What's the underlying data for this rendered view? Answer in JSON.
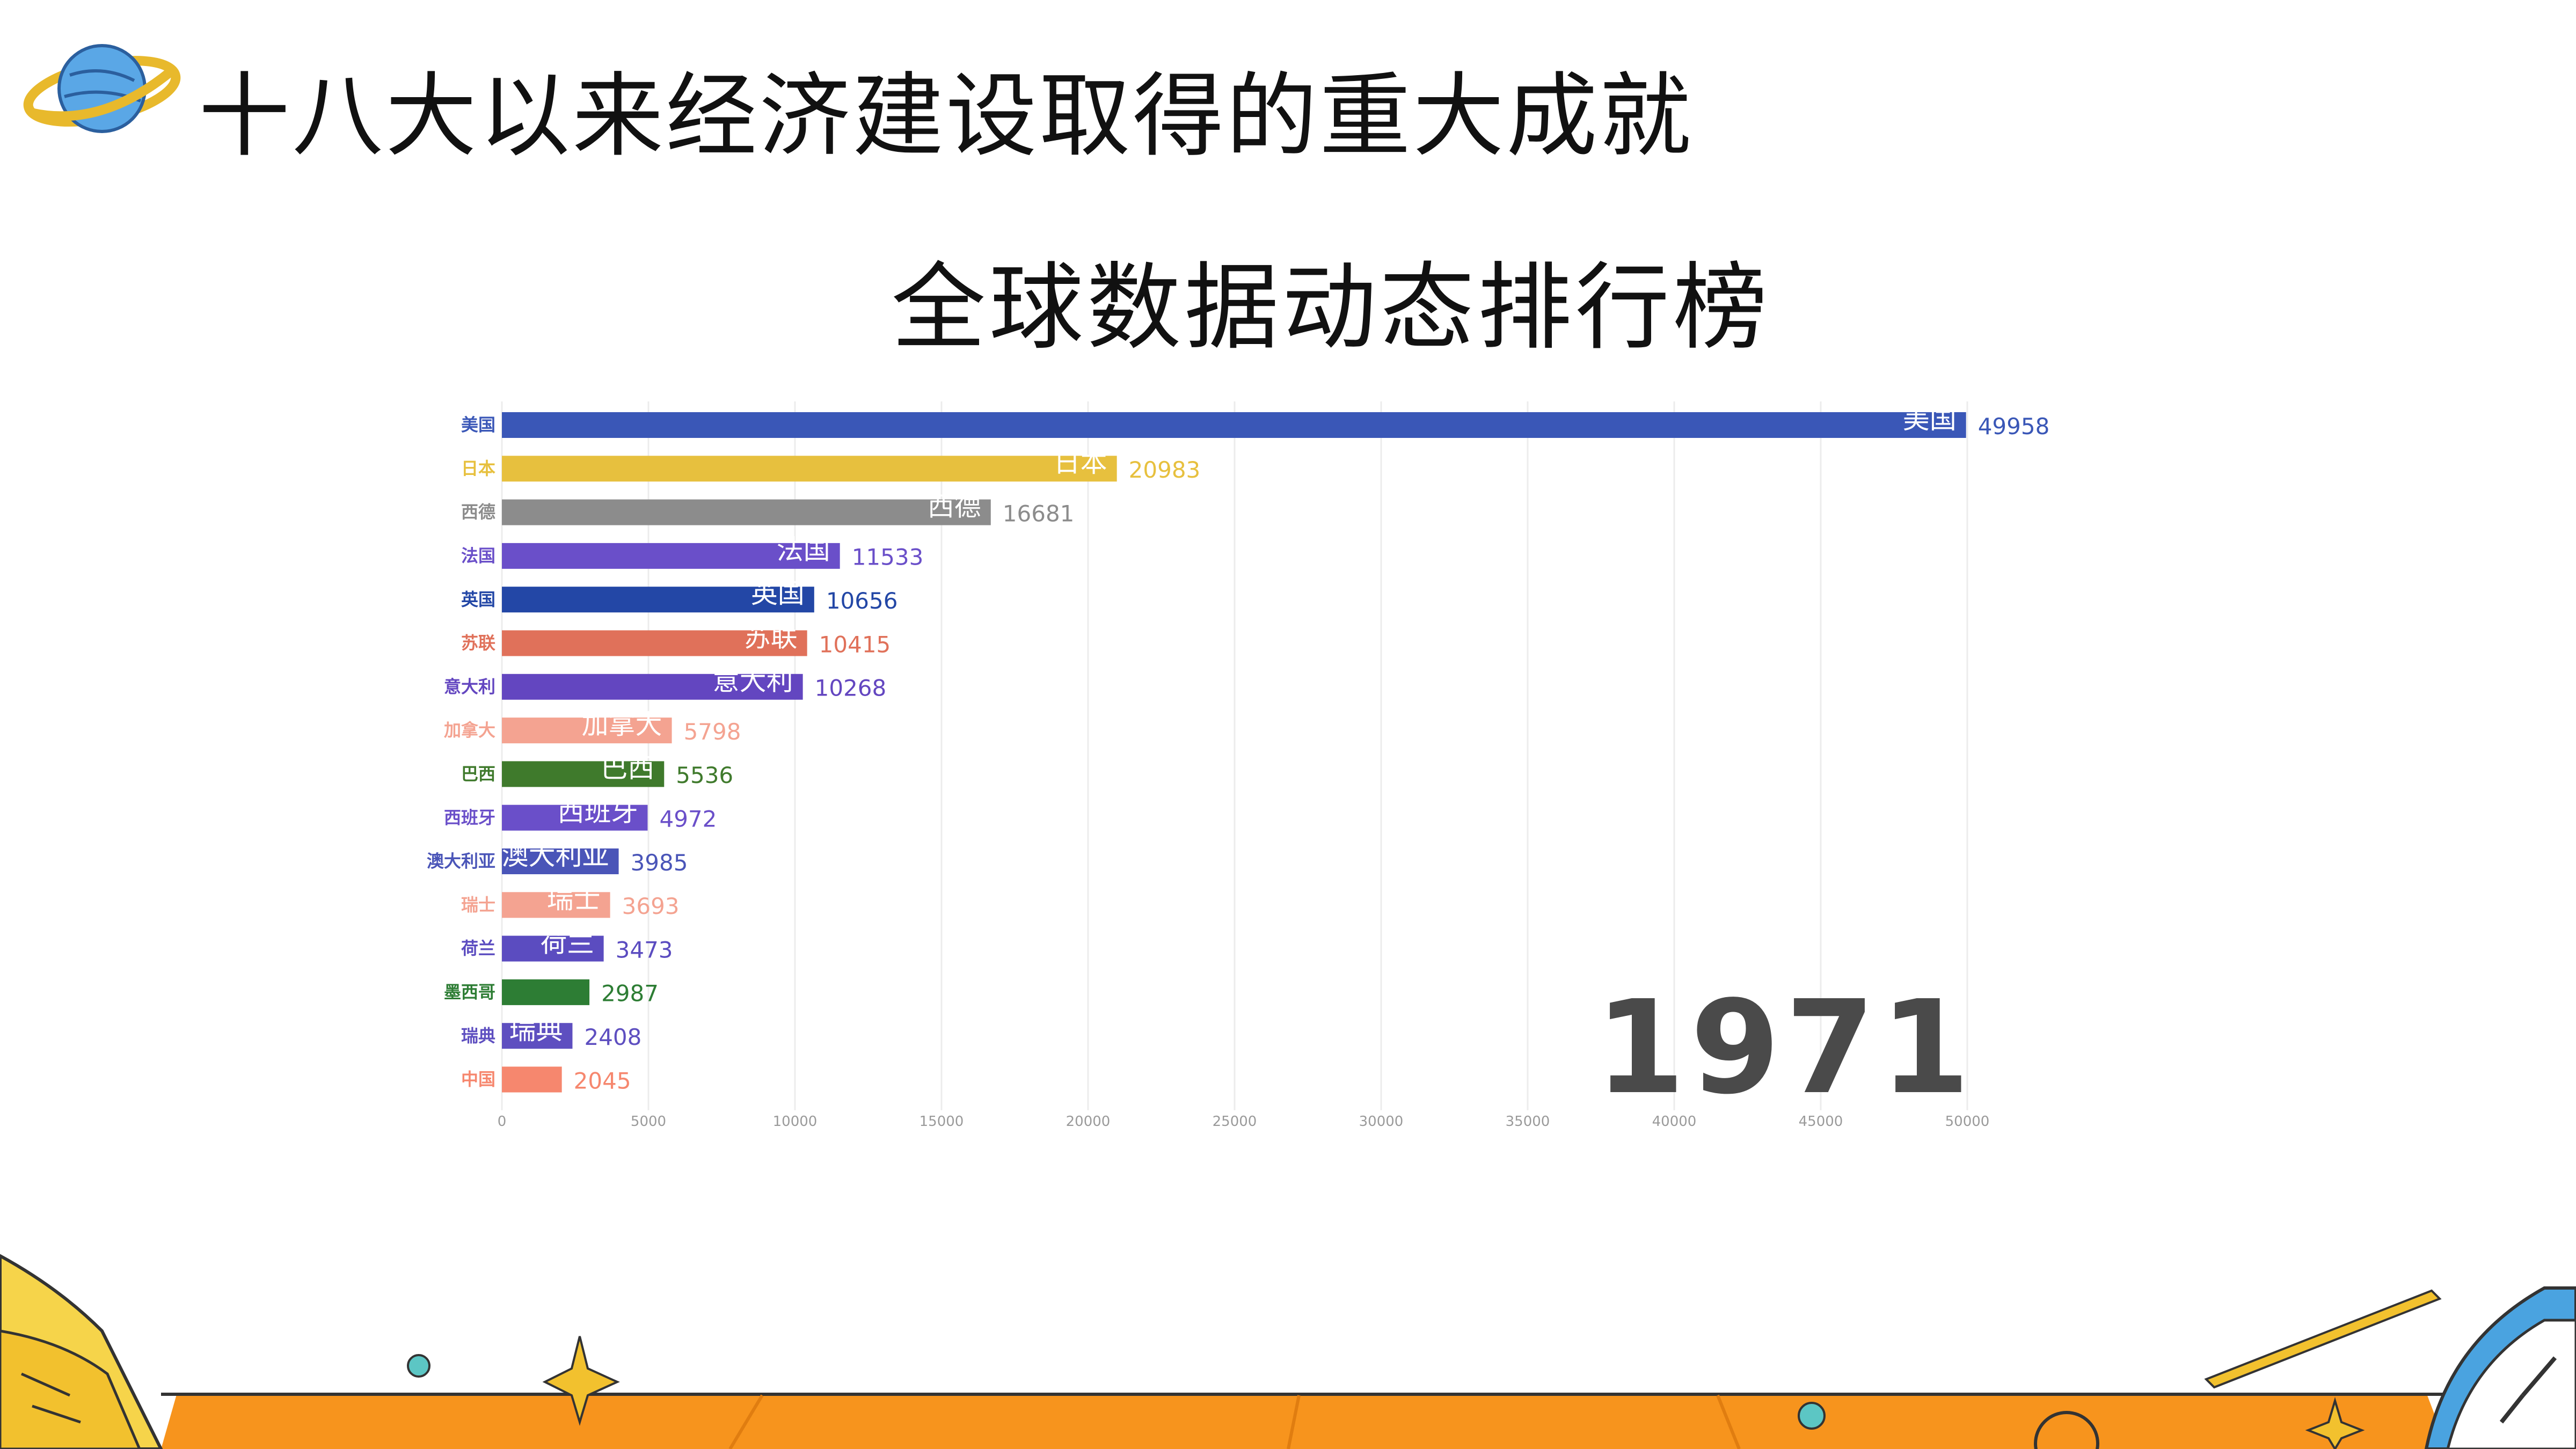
{
  "header": {
    "title": "十八大以来经济建设取得的重大成就"
  },
  "chart_data": {
    "type": "bar",
    "orientation": "horizontal",
    "title": "全球数据动态排行榜",
    "year_label": "1971",
    "categories": [
      "美国",
      "日本",
      "西德",
      "法国",
      "英国",
      "苏联",
      "意大利",
      "加拿大",
      "巴西",
      "西班牙",
      "澳大利亚",
      "瑞士",
      "荷兰",
      "墨西哥",
      "瑞典",
      "中国"
    ],
    "values": [
      49958,
      20983,
      16681,
      11533,
      10656,
      10415,
      10268,
      5798,
      5536,
      4972,
      3985,
      3693,
      3473,
      2987,
      2408,
      2045
    ],
    "value_labels": [
      "49958",
      "20983",
      "16681",
      "11533",
      "10656",
      "10415",
      "10268",
      "5798",
      "5536",
      "4972",
      "3985",
      "3693",
      "3473",
      "2987",
      "2408",
      "2045"
    ],
    "colors": [
      "#3a57b7",
      "#e7c03e",
      "#8c8c8c",
      "#6a4fc9",
      "#2347a6",
      "#e0715a",
      "#6346c0",
      "#f4a391",
      "#3f7a2c",
      "#6a4fc9",
      "#4a55b8",
      "#f4a391",
      "#5b4cc0",
      "#2d7d34",
      "#5e4fc0",
      "#f6876e"
    ],
    "xticks": [
      "0",
      "5000",
      "10000",
      "15000",
      "20000",
      "25000",
      "30000",
      "35000",
      "40000",
      "45000",
      "50000"
    ],
    "xlim": [
      0,
      50000
    ],
    "grid": true
  }
}
